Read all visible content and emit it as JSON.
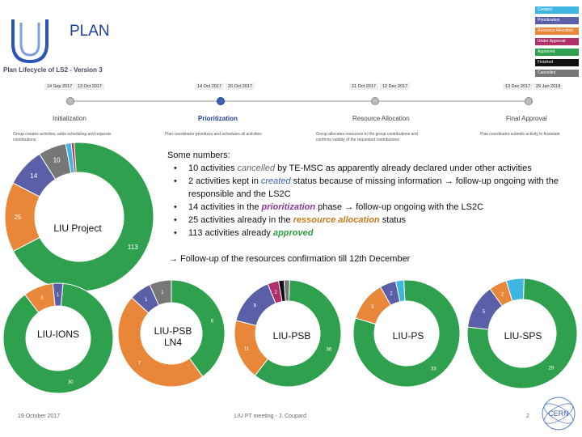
{
  "header": {
    "title": "PLAN",
    "lifecycle": "Plan Lifecycle of LS2 - Version 3"
  },
  "legend": [
    {
      "label": "Created",
      "color": "#3fb6e0"
    },
    {
      "label": "Prioritization",
      "color": "#5b5fa8"
    },
    {
      "label": "Resource Allocation",
      "color": "#e8873a"
    },
    {
      "label": "Under Approval",
      "color": "#b0306a"
    },
    {
      "label": "Approved",
      "color": "#2ea04e"
    },
    {
      "label": "Finished",
      "color": "#111111"
    },
    {
      "label": "Cancelled",
      "color": "#777777"
    }
  ],
  "timeline": {
    "phases": [
      {
        "name": "Initialization",
        "date_start": "14 Sep 2017",
        "date_end": "13 Oct 2017",
        "desc": "Group creates activities, adds scheduling and requests contributions"
      },
      {
        "name": "Prioritization",
        "date_start": "14 Oct 2017",
        "date_end": "20 Oct 2017",
        "desc": "Plan coordinator prioritizes and schedules all activities"
      },
      {
        "name": "Resource Allocation",
        "date_start": "21 Oct 2017",
        "date_end": "12 Dec 2017",
        "desc": "Group allocates resources to the group contributions and confirms validity of the requested contributions"
      },
      {
        "name": "Final Approval",
        "date_start": "13 Dec 2017",
        "date_end": "29 Jan 2018",
        "desc": "Plan coordinator submits activity to finalstate"
      }
    ]
  },
  "notes": {
    "intro": "Some numbers:",
    "b1_pre": "10 activities ",
    "b1_kw": "cancelled",
    "b1_post": " by TE-MSC as apparently already declared under other activities",
    "b2_pre": "2 activities kept in ",
    "b2_kw": "created",
    "b2_post": " status because of missing information → follow-up ongoing with the responsible and the LS2C",
    "b3_pre": "14 activities in the ",
    "b3_kw": "prioritization",
    "b3_post": " phase → follow-up ongoing with the LS2C",
    "b4_pre": "25 activities already in the ",
    "b4_kw": "ressource allocation",
    "b4_post": " status",
    "b5_pre": "113 activities already ",
    "b5_kw": "approved",
    "b5_post": "",
    "followup": "→ Follow-up of the resources confirmation till 12th December"
  },
  "donut_labels": {
    "liu_project": "LIU Project",
    "liu_ions": "LIU-IONS",
    "liu_psb_ln4": "LIU-PSB LN4",
    "liu_psb": "LIU-PSB",
    "liu_ps": "LIU-PS",
    "liu_sps": "LIU-SPS"
  },
  "chart_data": [
    {
      "type": "pie",
      "title": "LIU Project",
      "categories": [
        "Approved",
        "Resource Allocation",
        "Prioritization",
        "Cancelled",
        "Created",
        "Under Approval"
      ],
      "values": [
        113,
        25,
        14,
        10,
        2,
        1
      ],
      "value_labels": [
        "113",
        "25",
        "14",
        "10",
        "",
        ""
      ]
    },
    {
      "type": "pie",
      "title": "LIU-IONS",
      "categories": [
        "Approved",
        "Resource Allocation",
        "Prioritization",
        "Created"
      ],
      "values": [
        30,
        3,
        1,
        0
      ],
      "value_labels": [
        "30",
        "3",
        "1",
        ""
      ]
    },
    {
      "type": "pie",
      "title": "LIU-PSB LN4",
      "categories": [
        "Approved",
        "Resource Allocation",
        "Prioritization",
        "Cancelled"
      ],
      "values": [
        6,
        7,
        1,
        1
      ],
      "value_labels": [
        "6",
        "7",
        "1",
        "1"
      ]
    },
    {
      "type": "pie",
      "title": "LIU-PSB",
      "categories": [
        "Approved",
        "Resource Allocation",
        "Prioritization",
        "Under Approval",
        "Finished",
        "Cancelled"
      ],
      "values": [
        36,
        11,
        9,
        2,
        1,
        1
      ],
      "value_labels": [
        "36",
        "11",
        "9",
        "2",
        "",
        ""
      ]
    },
    {
      "type": "pie",
      "title": "LIU-PS",
      "categories": [
        "Approved",
        "Resource Allocation",
        "Prioritization",
        "Created"
      ],
      "values": [
        33,
        5,
        2,
        1
      ],
      "value_labels": [
        "33",
        "5",
        "2",
        ""
      ]
    },
    {
      "type": "pie",
      "title": "LIU-SPS",
      "categories": [
        "Approved",
        "Prioritization",
        "Resource Allocation",
        "Created"
      ],
      "values": [
        29,
        5,
        2,
        2
      ],
      "value_labels": [
        "29",
        "5",
        "2",
        ""
      ]
    }
  ],
  "footer": {
    "date": "19 October 2017",
    "meeting": "LIU PT meeting - J. Coupard",
    "page": "2",
    "logo": "CERN"
  }
}
